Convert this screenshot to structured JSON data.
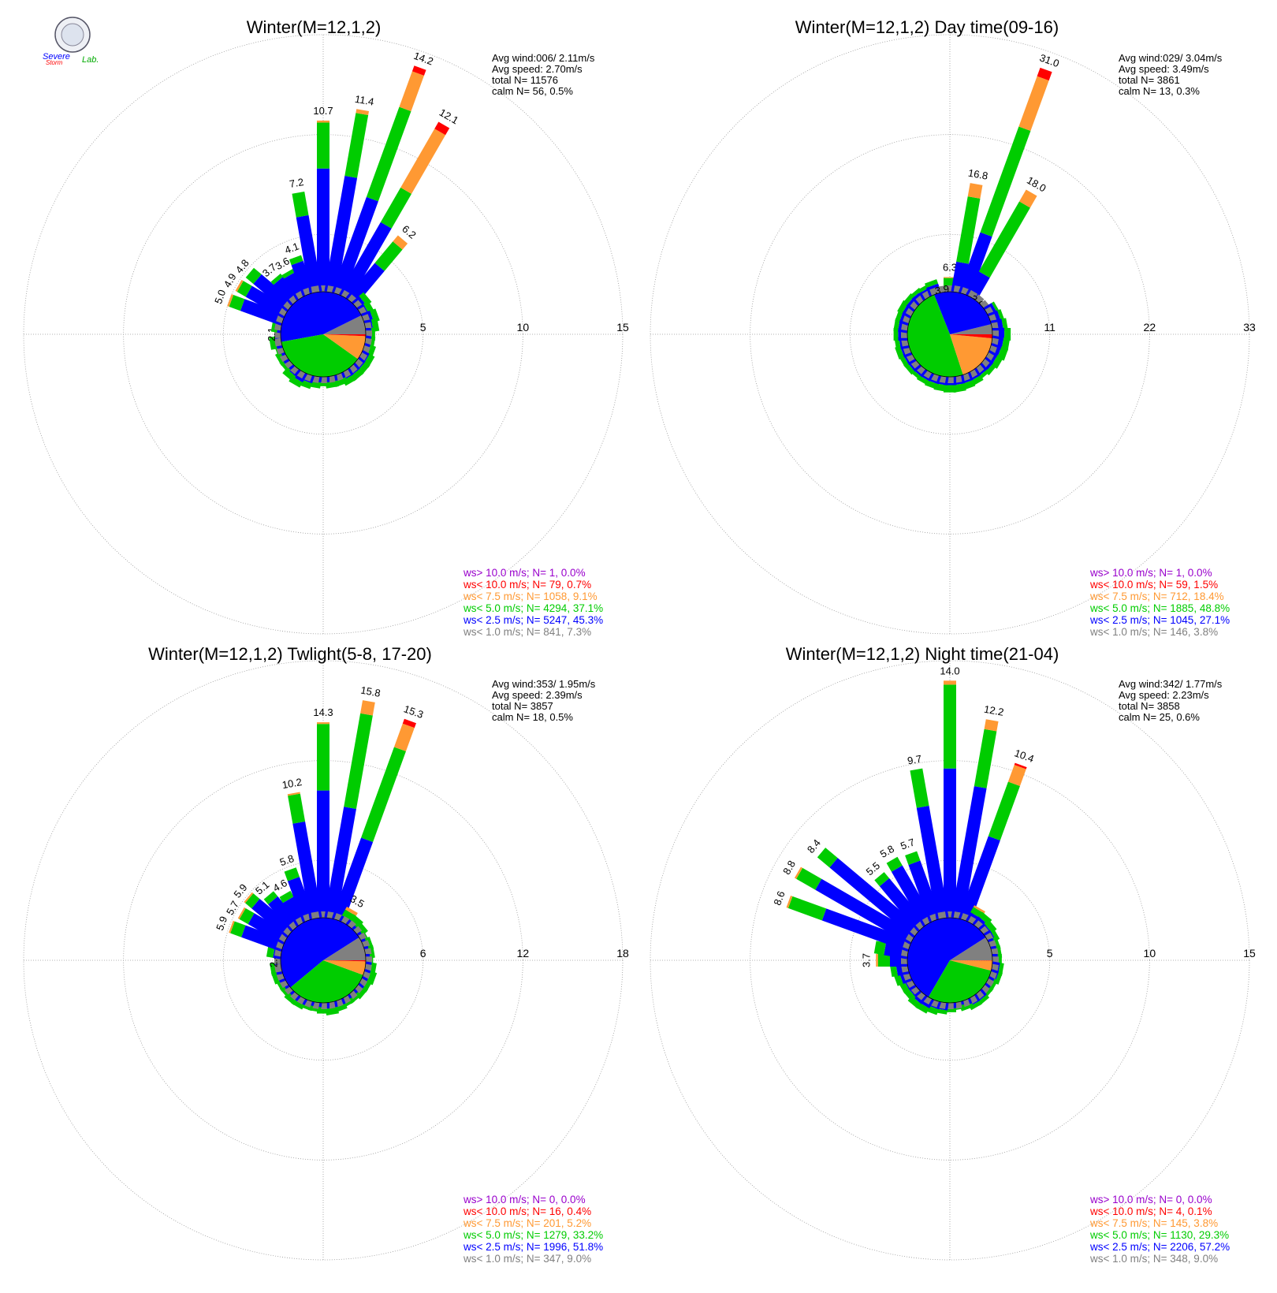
{
  "logo": {
    "text_line1": "Severe",
    "text_line2": "Storm",
    "text_line3": "Lab."
  },
  "colors": {
    "gt10": "#9900cc",
    "lt10": "#ff0000",
    "lt7_5": "#ff9933",
    "lt5": "#00cc00",
    "lt2_5": "#0000ff",
    "lt1": "#808080"
  },
  "chart_data": [
    {
      "type": "windrose",
      "title": "Winter(M=12,1,2)",
      "rmax": 15,
      "ring_labels": [
        "5",
        "10",
        "15"
      ],
      "stats": [
        "Avg wind:006/ 2.11m/s",
        "Avg speed: 2.70m/s",
        "total N=       11576",
        "calm N=     56,   0.5%"
      ],
      "legend": [
        {
          "text": "ws> 10.0 m/s; N=     1,  0.0%",
          "color": "gt10"
        },
        {
          "text": "ws< 10.0 m/s; N=    79,  0.7%",
          "color": "lt10"
        },
        {
          "text": "ws<  7.5 m/s; N=  1058,  9.1%",
          "color": "lt7_5"
        },
        {
          "text": "ws<  5.0 m/s; N=  4294, 37.1%",
          "color": "lt5"
        },
        {
          "text": "ws<  2.5 m/s; N=  5247, 45.3%",
          "color": "lt2_5"
        },
        {
          "text": "ws<  1.0 m/s; N=   841,  7.3%",
          "color": "lt1"
        }
      ],
      "pie": [
        7.3,
        45.3,
        37.1,
        9.1,
        0.7,
        0.0
      ],
      "directions_deg": [
        0,
        10,
        20,
        30,
        40,
        50,
        60,
        70,
        80,
        90,
        100,
        110,
        120,
        130,
        140,
        150,
        160,
        170,
        180,
        190,
        200,
        210,
        220,
        230,
        240,
        250,
        260,
        270,
        280,
        290,
        300,
        310,
        320,
        330,
        340,
        350
      ],
      "totals": [
        10.7,
        11.4,
        14.2,
        12.1,
        6.2,
        2.9,
        2.8,
        2.9,
        2.8,
        2.6,
        2.6,
        2.7,
        2.8,
        2.8,
        2.8,
        2.8,
        2.7,
        2.7,
        2.6,
        2.7,
        2.8,
        2.9,
        2.8,
        2.6,
        2.6,
        2.5,
        2.7,
        2.1,
        2.6,
        5.0,
        4.9,
        4.8,
        3.7,
        3.6,
        4.1,
        7.2
      ],
      "labeled": [
        10.7,
        11.4,
        14.2,
        12.1,
        6.2,
        null,
        null,
        null,
        null,
        null,
        null,
        null,
        null,
        null,
        null,
        null,
        null,
        null,
        null,
        null,
        null,
        null,
        null,
        null,
        null,
        null,
        null,
        2.1,
        null,
        5.0,
        4.9,
        4.8,
        3.7,
        3.6,
        4.1,
        7.2
      ],
      "blue_cum": [
        8.3,
        8.0,
        7.2,
        6.3,
        4.4,
        2.6,
        2.5,
        2.6,
        2.5,
        2.4,
        2.4,
        2.4,
        2.5,
        2.5,
        2.5,
        2.5,
        2.4,
        2.4,
        2.4,
        2.4,
        2.5,
        2.6,
        2.5,
        2.4,
        2.4,
        2.3,
        2.4,
        1.8,
        2.3,
        4.3,
        4.3,
        4.3,
        3.5,
        3.4,
        3.8,
        6.0
      ],
      "green_cum": [
        10.6,
        11.2,
        12.0,
        8.3,
        5.8,
        2.9,
        2.8,
        2.9,
        2.8,
        2.6,
        2.6,
        2.7,
        2.8,
        2.8,
        2.8,
        2.8,
        2.7,
        2.7,
        2.6,
        2.7,
        2.8,
        2.9,
        2.8,
        2.6,
        2.6,
        2.5,
        2.7,
        2.1,
        2.6,
        4.9,
        4.8,
        4.8,
        3.7,
        3.6,
        4.1,
        7.2
      ],
      "orange_cum": [
        10.7,
        11.4,
        13.9,
        11.7,
        6.2,
        2.9,
        2.8,
        2.9,
        2.8,
        2.6,
        2.6,
        2.7,
        2.8,
        2.8,
        2.8,
        2.8,
        2.7,
        2.7,
        2.6,
        2.7,
        2.8,
        2.9,
        2.8,
        2.6,
        2.6,
        2.5,
        2.7,
        2.1,
        2.6,
        5.0,
        4.9,
        4.8,
        3.7,
        3.6,
        4.1,
        7.2
      ]
    },
    {
      "type": "windrose",
      "title": "Winter(M=12,1,2) Day time(09-16)",
      "rmax": 33,
      "ring_labels": [
        "11",
        "22",
        "33"
      ],
      "stats": [
        "Avg wind:029/ 3.04m/s",
        "Avg speed: 3.49m/s",
        "total N=        3861",
        "calm N=     13,   0.3%"
      ],
      "legend": [
        {
          "text": "ws> 10.0 m/s; N=     1,  0.0%",
          "color": "gt10"
        },
        {
          "text": "ws< 10.0 m/s; N=    59,  1.5%",
          "color": "lt10"
        },
        {
          "text": "ws<  7.5 m/s; N=   712, 18.4%",
          "color": "lt7_5"
        },
        {
          "text": "ws<  5.0 m/s; N=  1885, 48.8%",
          "color": "lt5"
        },
        {
          "text": "ws<  2.5 m/s; N=  1045, 27.1%",
          "color": "lt2_5"
        },
        {
          "text": "ws<  1.0 m/s; N=   146,  3.8%",
          "color": "lt1"
        }
      ],
      "pie": [
        3.8,
        27.1,
        48.8,
        18.4,
        1.5,
        0.0
      ],
      "directions_deg": [
        0,
        10,
        20,
        30,
        40,
        50,
        60,
        70,
        80,
        90,
        100,
        110,
        120,
        130,
        140,
        150,
        160,
        170,
        180,
        190,
        200,
        210,
        220,
        230,
        240,
        250,
        260,
        270,
        280,
        290,
        300,
        310,
        320,
        330,
        340,
        350
      ],
      "totals": [
        6.3,
        16.8,
        31.0,
        18.0,
        3.6,
        2.0,
        6.0,
        6.2,
        6.4,
        6.7,
        6.6,
        6.6,
        6.4,
        6.2,
        6.0,
        6.2,
        6.3,
        6.4,
        6.4,
        6.3,
        6.2,
        6.1,
        6.0,
        6.1,
        6.1,
        6.2,
        6.1,
        6.2,
        6.2,
        6.2,
        6.3,
        6.2,
        6.1,
        6.0,
        6.2,
        3.9
      ],
      "labeled": [
        6.3,
        16.8,
        31.0,
        18.0,
        3.6,
        2.0,
        null,
        null,
        null,
        null,
        null,
        null,
        null,
        null,
        null,
        null,
        null,
        null,
        null,
        null,
        null,
        null,
        null,
        null,
        null,
        null,
        null,
        null,
        null,
        null,
        null,
        null,
        null,
        null,
        null,
        3.9
      ],
      "blue_cum": [
        4.8,
        8.0,
        11.7,
        7.6,
        3.0,
        1.8,
        5.7,
        5.8,
        5.9,
        6.0,
        5.9,
        5.8,
        5.7,
        5.7,
        5.6,
        5.6,
        5.6,
        5.6,
        5.6,
        5.6,
        5.6,
        5.6,
        5.6,
        5.6,
        5.6,
        5.6,
        5.6,
        5.7,
        5.7,
        5.7,
        5.7,
        5.7,
        5.7,
        5.6,
        5.7,
        3.3
      ],
      "green_cum": [
        6.2,
        15.3,
        24.1,
        16.5,
        3.5,
        2.0,
        6.0,
        6.2,
        6.4,
        6.7,
        6.6,
        6.6,
        6.4,
        6.2,
        6.0,
        6.2,
        6.3,
        6.4,
        6.4,
        6.3,
        6.2,
        6.1,
        6.0,
        6.1,
        6.1,
        6.2,
        6.1,
        6.2,
        6.2,
        6.2,
        6.3,
        6.2,
        6.1,
        6.0,
        6.2,
        3.9
      ],
      "orange_cum": [
        6.3,
        16.8,
        30.0,
        18.0,
        3.6,
        2.0,
        6.0,
        6.2,
        6.4,
        6.7,
        6.6,
        6.6,
        6.4,
        6.2,
        6.0,
        6.2,
        6.3,
        6.4,
        6.4,
        6.3,
        6.2,
        6.1,
        6.0,
        6.1,
        6.1,
        6.2,
        6.1,
        6.2,
        6.2,
        6.2,
        6.3,
        6.2,
        6.1,
        6.0,
        6.2,
        3.9
      ]
    },
    {
      "type": "windrose",
      "title": "Winter(M=12,1,2) Twlight(5-8, 17-20)",
      "rmax": 18,
      "ring_labels": [
        "6",
        "12",
        "18"
      ],
      "stats": [
        "Avg wind:353/ 1.95m/s",
        "Avg speed: 2.39m/s",
        "total N=        3857",
        "calm N=     18,   0.5%"
      ],
      "legend": [
        {
          "text": "ws> 10.0 m/s; N=     0,  0.0%",
          "color": "gt10"
        },
        {
          "text": "ws< 10.0 m/s; N=    16,  0.4%",
          "color": "lt10"
        },
        {
          "text": "ws<  7.5 m/s; N=   201,  5.2%",
          "color": "lt7_5"
        },
        {
          "text": "ws<  5.0 m/s; N=  1279, 33.2%",
          "color": "lt5"
        },
        {
          "text": "ws<  2.5 m/s; N=  1996, 51.8%",
          "color": "lt2_5"
        },
        {
          "text": "ws<  1.0 m/s; N=   347,  9.0%",
          "color": "lt1"
        }
      ],
      "pie": [
        9.0,
        51.8,
        33.2,
        5.2,
        0.4,
        0.0
      ],
      "directions_deg": [
        0,
        10,
        20,
        30,
        40,
        50,
        60,
        70,
        80,
        90,
        100,
        110,
        120,
        130,
        140,
        150,
        160,
        170,
        180,
        190,
        200,
        210,
        220,
        230,
        240,
        250,
        260,
        270,
        280,
        290,
        300,
        310,
        320,
        330,
        340,
        350
      ],
      "totals": [
        14.3,
        15.8,
        15.3,
        3.5,
        3.3,
        3.2,
        3.0,
        3.1,
        3.1,
        3.0,
        3.2,
        3.3,
        3.2,
        3.2,
        3.1,
        3.1,
        3.2,
        3.3,
        3.2,
        3.1,
        3.1,
        3.2,
        3.2,
        3.1,
        3.1,
        3.2,
        3.2,
        2.4,
        3.4,
        5.9,
        5.7,
        5.9,
        5.1,
        4.6,
        5.8,
        10.2
      ],
      "labeled": [
        14.3,
        15.8,
        15.3,
        3.5,
        null,
        null,
        null,
        null,
        null,
        null,
        null,
        null,
        null,
        null,
        null,
        null,
        null,
        null,
        null,
        null,
        null,
        null,
        null,
        null,
        null,
        null,
        null,
        2.4,
        null,
        5.9,
        5.7,
        5.9,
        5.1,
        4.6,
        5.8,
        10.2
      ],
      "blue_cum": [
        10.2,
        9.3,
        7.7,
        2.9,
        2.9,
        2.8,
        2.8,
        2.8,
        2.8,
        2.8,
        2.9,
        2.9,
        2.9,
        2.9,
        2.8,
        2.8,
        2.9,
        2.9,
        2.9,
        2.8,
        2.8,
        2.9,
        2.9,
        2.8,
        2.8,
        2.9,
        2.9,
        2.0,
        3.0,
        5.1,
        5.0,
        5.3,
        4.7,
        4.2,
        5.2,
        8.4
      ],
      "green_cum": [
        14.2,
        15.0,
        13.5,
        3.3,
        3.3,
        3.2,
        3.0,
        3.1,
        3.1,
        3.0,
        3.2,
        3.3,
        3.2,
        3.2,
        3.1,
        3.1,
        3.2,
        3.3,
        3.2,
        3.1,
        3.1,
        3.2,
        3.2,
        3.1,
        3.1,
        3.2,
        3.2,
        2.4,
        3.4,
        5.8,
        5.6,
        5.8,
        5.1,
        4.6,
        5.8,
        10.1
      ],
      "orange_cum": [
        14.3,
        15.8,
        15.0,
        3.5,
        3.3,
        3.2,
        3.0,
        3.1,
        3.1,
        3.0,
        3.2,
        3.3,
        3.2,
        3.2,
        3.1,
        3.1,
        3.2,
        3.3,
        3.2,
        3.1,
        3.1,
        3.2,
        3.2,
        3.1,
        3.1,
        3.2,
        3.2,
        2.4,
        3.4,
        5.9,
        5.7,
        5.9,
        5.1,
        4.6,
        5.8,
        10.2
      ]
    },
    {
      "type": "windrose",
      "title": "Winter(M=12,1,2) Night time(21-04)",
      "rmax": 15,
      "ring_labels": [
        "5",
        "10",
        "15"
      ],
      "stats": [
        "Avg wind:342/ 1.77m/s",
        "Avg speed: 2.23m/s",
        "total N=        3858",
        "calm N=     25,   0.6%"
      ],
      "legend": [
        {
          "text": "ws> 10.0 m/s; N=     0,  0.0%",
          "color": "gt10"
        },
        {
          "text": "ws< 10.0 m/s; N=     4,  0.1%",
          "color": "lt10"
        },
        {
          "text": "ws<  7.5 m/s; N=   145,  3.8%",
          "color": "lt7_5"
        },
        {
          "text": "ws<  5.0 m/s; N=  1130, 29.3%",
          "color": "lt5"
        },
        {
          "text": "ws<  2.5 m/s; N=  2206, 57.2%",
          "color": "lt2_5"
        },
        {
          "text": "ws<  1.0 m/s; N=   348,  9.0%",
          "color": "lt1"
        }
      ],
      "pie": [
        9.0,
        57.2,
        29.3,
        3.8,
        0.1,
        0.0
      ],
      "directions_deg": [
        0,
        10,
        20,
        30,
        40,
        50,
        60,
        70,
        80,
        90,
        100,
        110,
        120,
        130,
        140,
        150,
        160,
        170,
        180,
        190,
        200,
        210,
        220,
        230,
        240,
        250,
        260,
        270,
        280,
        290,
        300,
        310,
        320,
        330,
        340,
        350
      ],
      "totals": [
        14.0,
        12.2,
        10.4,
        3.0,
        2.9,
        2.8,
        2.7,
        2.6,
        2.6,
        2.6,
        2.7,
        2.7,
        2.6,
        2.6,
        2.7,
        2.7,
        2.6,
        2.5,
        2.6,
        2.7,
        2.8,
        2.9,
        2.9,
        2.8,
        2.8,
        2.9,
        3.0,
        3.7,
        3.8,
        8.6,
        8.8,
        8.4,
        5.5,
        5.8,
        5.7,
        9.7
      ],
      "labeled": [
        14.0,
        12.2,
        10.4,
        null,
        null,
        null,
        null,
        null,
        null,
        null,
        null,
        null,
        null,
        null,
        null,
        null,
        null,
        null,
        null,
        null,
        null,
        null,
        null,
        null,
        null,
        null,
        null,
        3.7,
        null,
        8.6,
        8.8,
        8.4,
        5.5,
        5.8,
        5.7,
        9.7
      ],
      "blue_cum": [
        9.6,
        8.8,
        6.5,
        2.6,
        2.6,
        2.5,
        2.5,
        2.4,
        2.4,
        2.4,
        2.5,
        2.5,
        2.4,
        2.4,
        2.5,
        2.5,
        2.4,
        2.3,
        2.4,
        2.5,
        2.5,
        2.6,
        2.6,
        2.5,
        2.5,
        2.6,
        2.7,
        3.0,
        3.3,
        6.7,
        7.6,
        7.6,
        5.1,
        5.3,
        5.2,
        7.8
      ],
      "green_cum": [
        13.8,
        11.7,
        9.4,
        2.9,
        2.9,
        2.8,
        2.7,
        2.6,
        2.6,
        2.6,
        2.7,
        2.7,
        2.6,
        2.6,
        2.7,
        2.7,
        2.6,
        2.5,
        2.6,
        2.7,
        2.8,
        2.9,
        2.9,
        2.8,
        2.8,
        2.9,
        3.0,
        3.6,
        3.8,
        8.5,
        8.7,
        8.4,
        5.5,
        5.8,
        5.7,
        9.7
      ],
      "orange_cum": [
        14.0,
        12.2,
        10.3,
        3.0,
        2.9,
        2.8,
        2.7,
        2.6,
        2.6,
        2.6,
        2.7,
        2.7,
        2.6,
        2.6,
        2.7,
        2.7,
        2.6,
        2.5,
        2.6,
        2.7,
        2.8,
        2.9,
        2.9,
        2.8,
        2.8,
        2.9,
        3.0,
        3.7,
        3.8,
        8.6,
        8.8,
        8.4,
        5.5,
        5.8,
        5.7,
        9.7
      ]
    }
  ]
}
